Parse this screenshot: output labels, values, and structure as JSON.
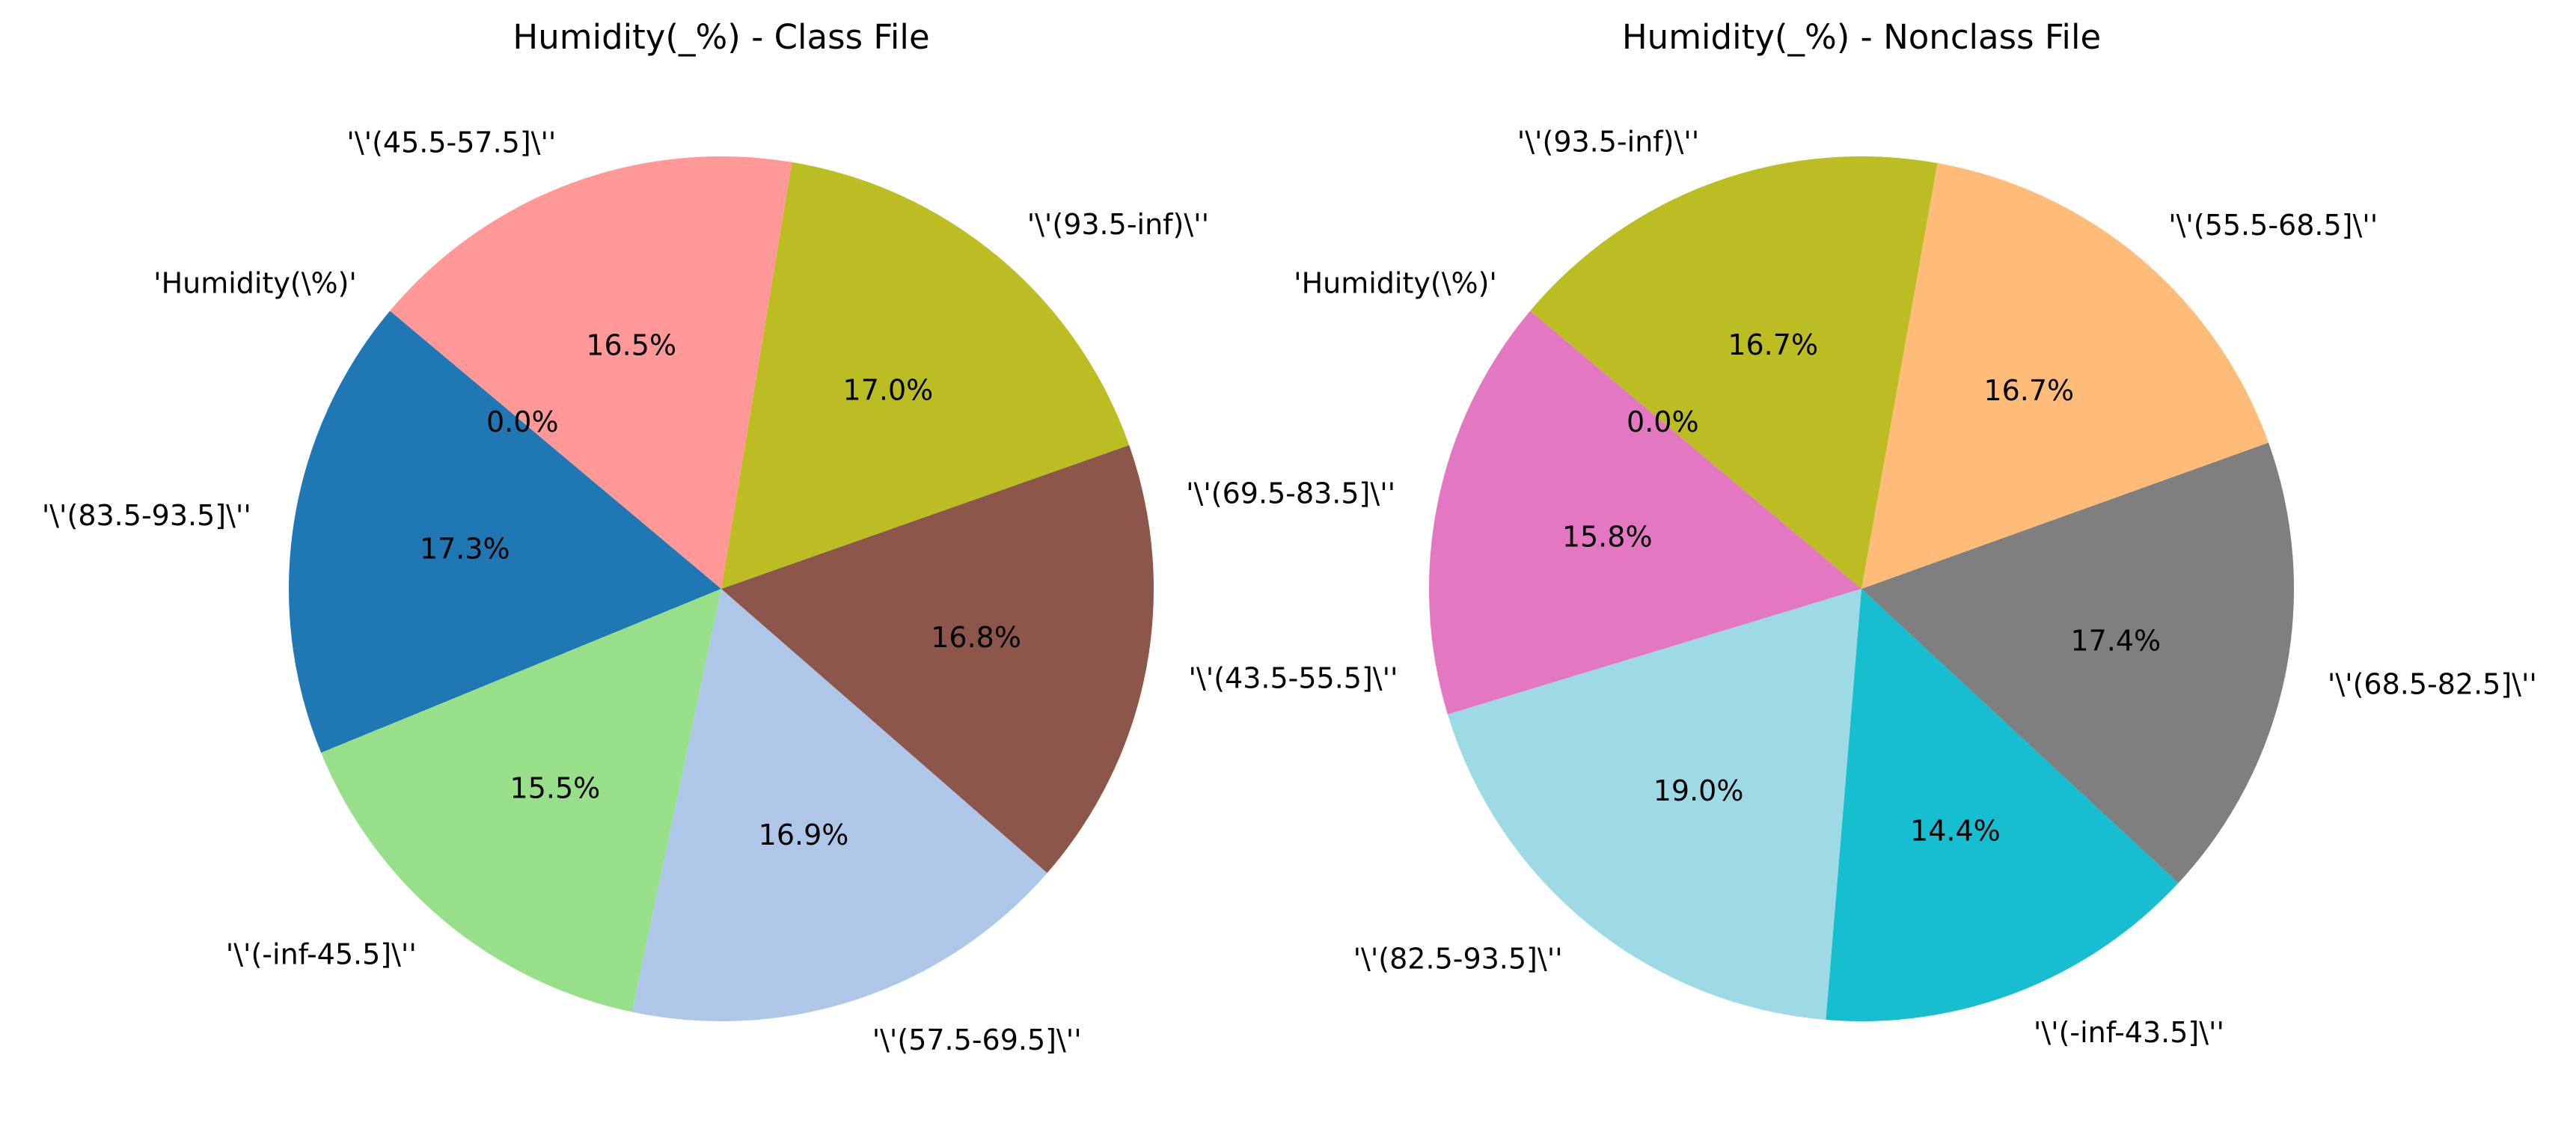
{
  "chart_data": [
    {
      "type": "pie",
      "title": "Humidity(_%) - Class File",
      "start_angle_deg": 140,
      "direction": "counterclockwise",
      "autopct_format": "1 decimal %",
      "slices": [
        {
          "label": "'Humidity(\\%)'",
          "pct_label": "0.0%",
          "value": 0.0,
          "color": "#1f77b4"
        },
        {
          "label": "'\\'(83.5-93.5]\\''",
          "pct_label": "17.3%",
          "value": 17.3,
          "color": "#1f77b4"
        },
        {
          "label": "'\\'(-inf-45.5]\\''",
          "pct_label": "15.5%",
          "value": 15.5,
          "color": "#98df8a"
        },
        {
          "label": "'\\'(57.5-69.5]\\''",
          "pct_label": "16.9%",
          "value": 16.9,
          "color": "#aec7e8"
        },
        {
          "label": "'\\'(43.5-55.5]\\''",
          "pct_label": "16.8%",
          "value": 16.8,
          "color": "#8c564b"
        },
        {
          "label": "'\\'(93.5-inf)\\''",
          "pct_label": "17.0%",
          "value": 17.0,
          "color": "#bcbd22"
        },
        {
          "label": "'\\'(45.5-57.5]\\''",
          "pct_label": "16.5%",
          "value": 16.5,
          "color": "#ff9896"
        }
      ]
    },
    {
      "type": "pie",
      "title": "Humidity(_%) - Nonclass File",
      "start_angle_deg": 140,
      "direction": "counterclockwise",
      "autopct_format": "1 decimal %",
      "slices": [
        {
          "label": "'Humidity(\\%)'",
          "pct_label": "0.0%",
          "value": 0.0,
          "color": "#e377c2"
        },
        {
          "label": "'\\'(69.5-83.5]\\''",
          "pct_label": "15.8%",
          "value": 15.8,
          "color": "#e377c2"
        },
        {
          "label": "'\\'(82.5-93.5]\\''",
          "pct_label": "19.0%",
          "value": 19.0,
          "color": "#9edae5"
        },
        {
          "label": "'\\'(-inf-43.5]\\''",
          "pct_label": "14.4%",
          "value": 14.4,
          "color": "#17becf"
        },
        {
          "label": "'\\'(68.5-82.5]\\''",
          "pct_label": "17.4%",
          "value": 17.4,
          "color": "#7f7f7f"
        },
        {
          "label": "'\\'(55.5-68.5]\\''",
          "pct_label": "16.7%",
          "value": 16.7,
          "color": "#ffbb78"
        },
        {
          "label": "'\\'(93.5-inf)\\''",
          "pct_label": "16.7%",
          "value": 16.7,
          "color": "#bcbd22"
        }
      ]
    }
  ]
}
